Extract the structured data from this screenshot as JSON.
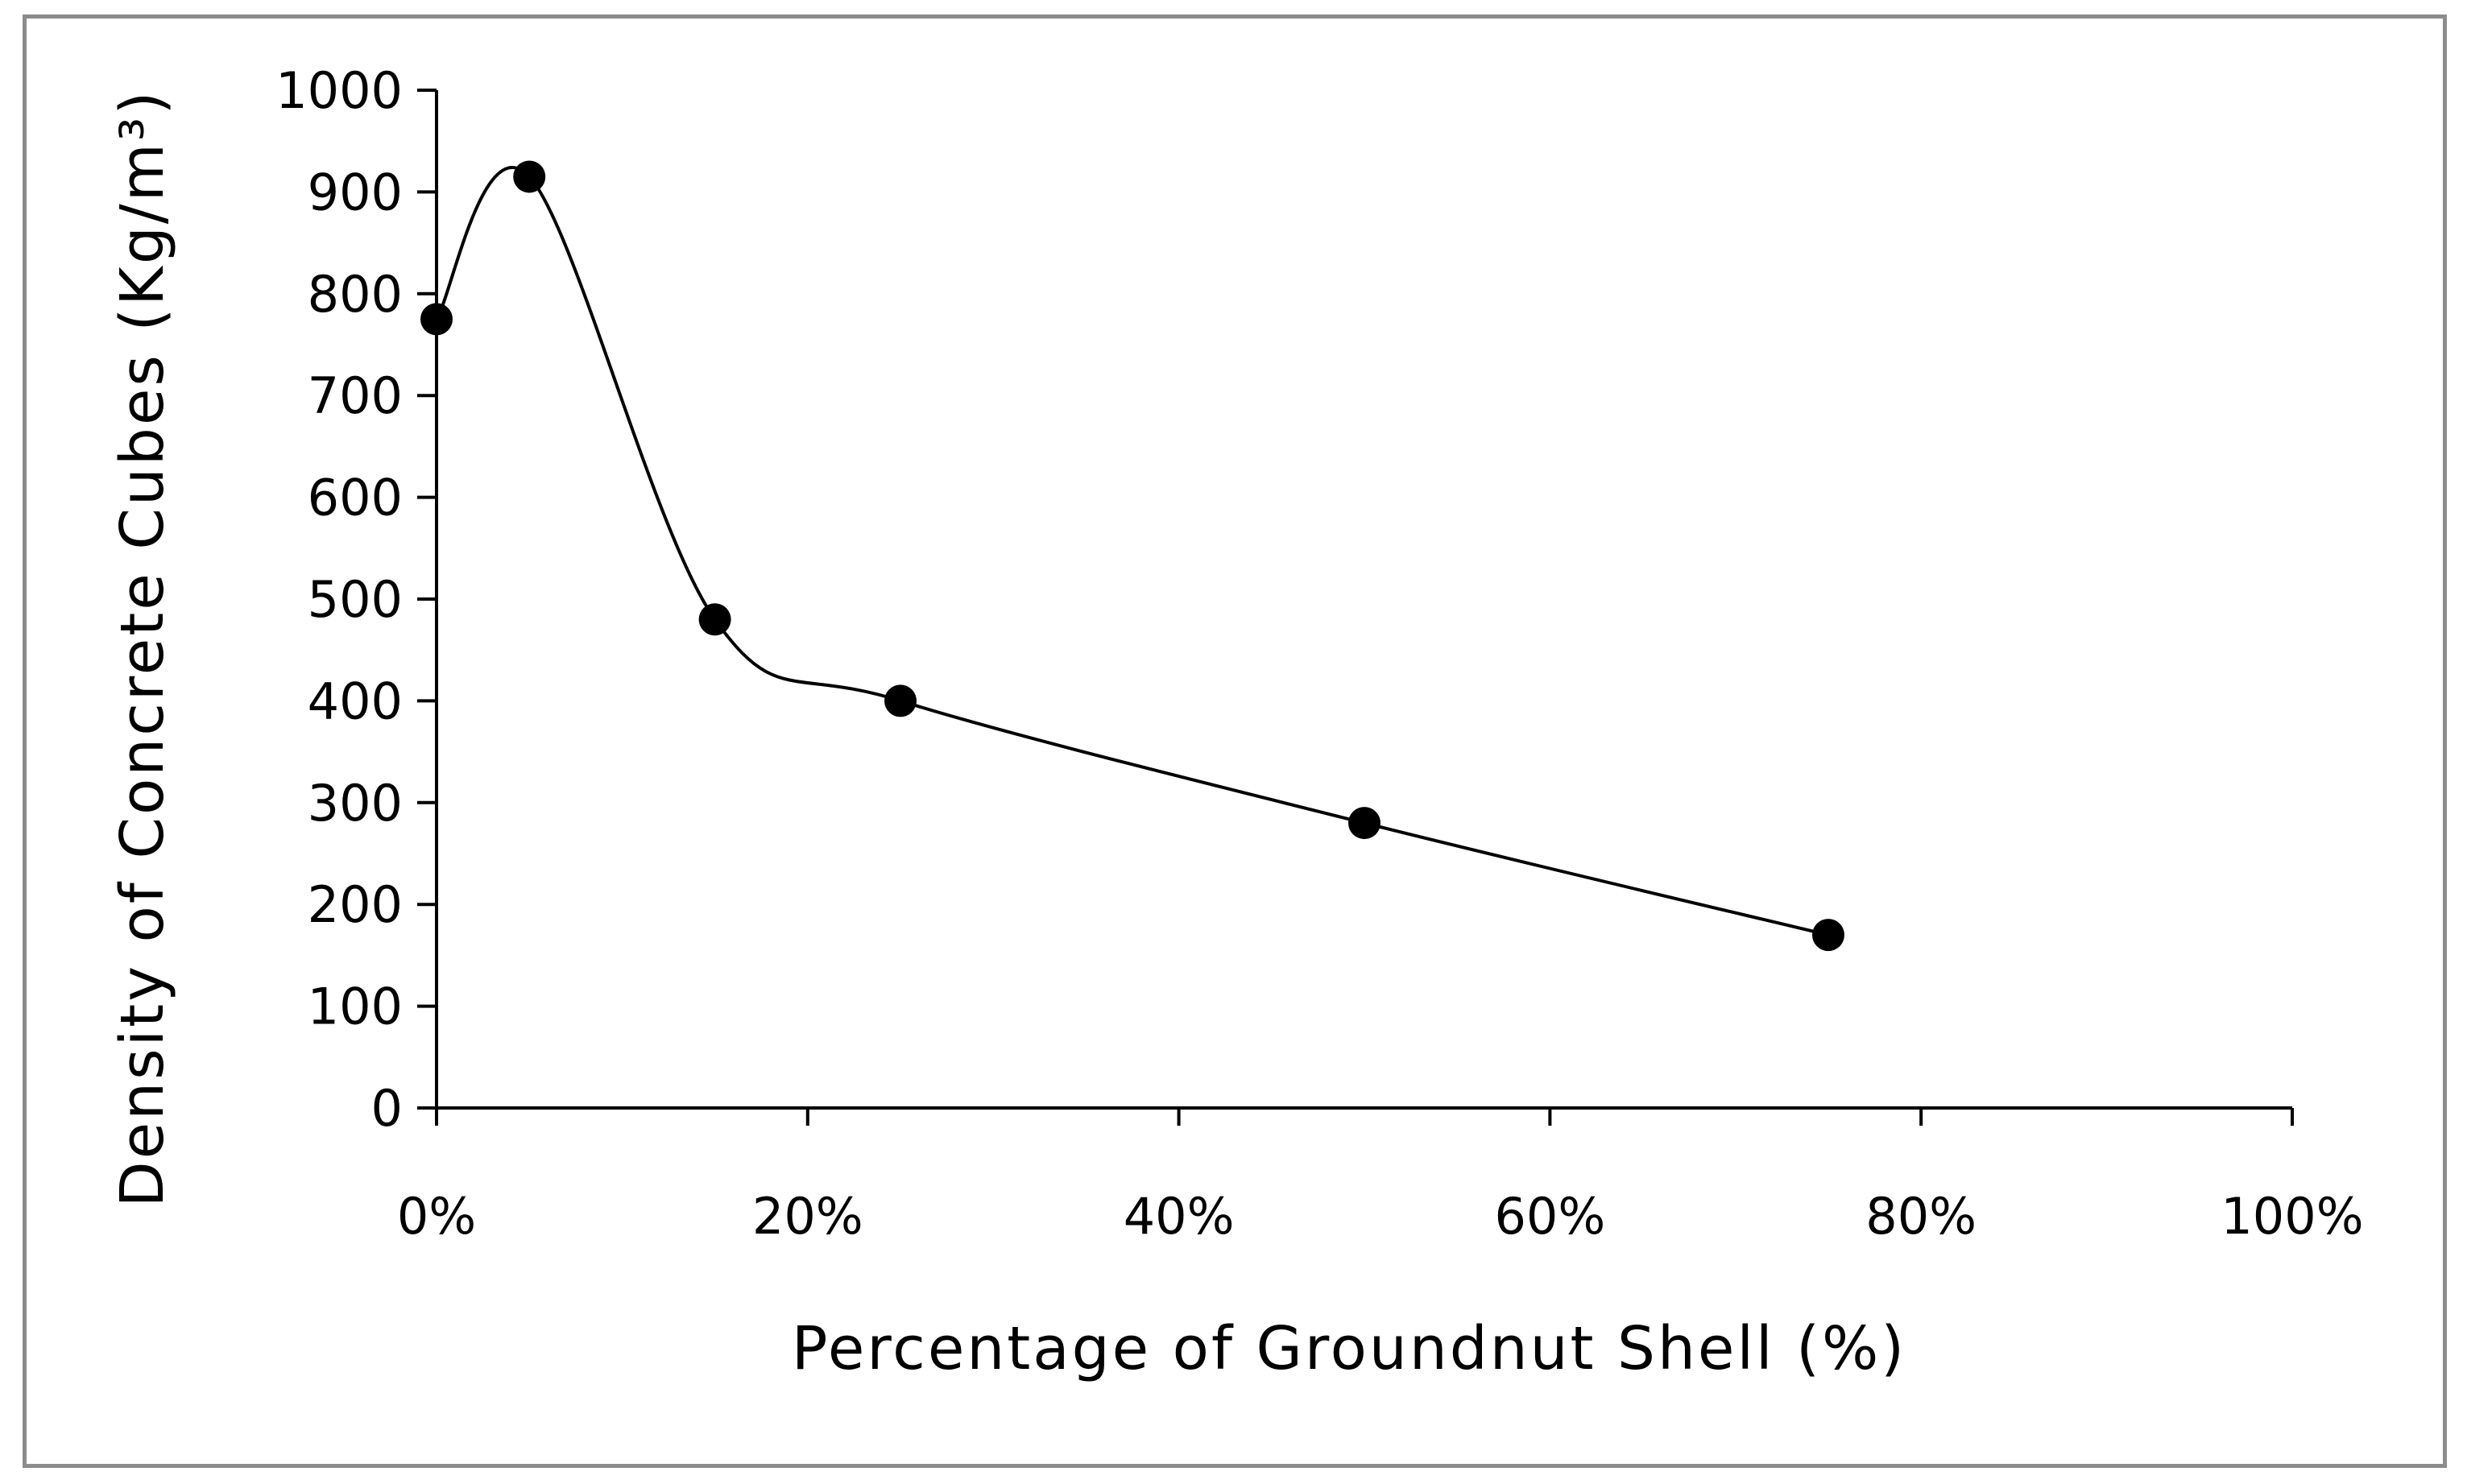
{
  "chart_data": {
    "type": "scatter",
    "title": "",
    "xlabel": "Percentage of Groundnut Shell (%)",
    "ylabel": "Density of Concrete Cubes (Kg/m³)",
    "xlim": [
      0,
      100
    ],
    "ylim": [
      0,
      1000
    ],
    "x_ticks": [
      {
        "value": 0,
        "label": "0%"
      },
      {
        "value": 20,
        "label": "20%"
      },
      {
        "value": 40,
        "label": "40%"
      },
      {
        "value": 60,
        "label": "60%"
      },
      {
        "value": 80,
        "label": "80%"
      },
      {
        "value": 100,
        "label": "100%"
      }
    ],
    "y_ticks": [
      {
        "value": 0,
        "label": "0"
      },
      {
        "value": 100,
        "label": "100"
      },
      {
        "value": 200,
        "label": "200"
      },
      {
        "value": 300,
        "label": "300"
      },
      {
        "value": 400,
        "label": "400"
      },
      {
        "value": 500,
        "label": "500"
      },
      {
        "value": 600,
        "label": "600"
      },
      {
        "value": 700,
        "label": "700"
      },
      {
        "value": 800,
        "label": "800"
      },
      {
        "value": 900,
        "label": "900"
      },
      {
        "value": 1000,
        "label": "1000"
      }
    ],
    "grid": false,
    "legend": "none",
    "line_style": "smoothed",
    "series": [
      {
        "color": "#000000",
        "points": [
          {
            "x": 0,
            "y": 775
          },
          {
            "x": 5,
            "y": 915
          },
          {
            "x": 15,
            "y": 480
          },
          {
            "x": 25,
            "y": 400
          },
          {
            "x": 50,
            "y": 280
          },
          {
            "x": 75,
            "y": 170
          }
        ]
      }
    ]
  }
}
